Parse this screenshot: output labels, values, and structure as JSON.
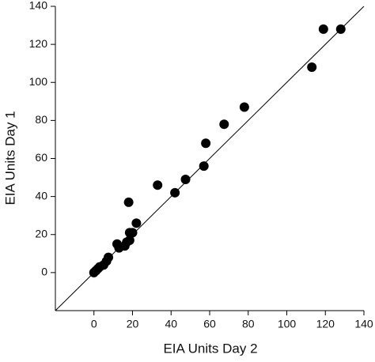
{
  "chart_data": {
    "type": "scatter",
    "x_label": "EIA Units Day 2",
    "y_label": "EIA Units Day 1",
    "x": [
      0,
      1,
      2,
      3,
      5,
      6.5,
      7.5,
      12,
      13,
      16,
      17,
      18.5,
      18.5,
      20,
      22,
      18,
      33,
      42,
      47.5,
      57,
      58,
      67.5,
      78,
      113,
      119,
      128
    ],
    "y": [
      0,
      1,
      2,
      3,
      4,
      6,
      8,
      15,
      13,
      14,
      16,
      17,
      21,
      21,
      26,
      37,
      46,
      42,
      49,
      56,
      68,
      78,
      87,
      108,
      128,
      128
    ],
    "color": "#000000",
    "reference_line": {
      "x": [
        -20,
        140
      ],
      "y": [
        -20,
        140
      ]
    },
    "xlim": [
      -20,
      140
    ],
    "ylim": [
      -20,
      140
    ],
    "xticks": [
      0,
      20,
      40,
      60,
      80,
      100,
      120,
      140
    ],
    "yticks": [
      0,
      20,
      40,
      60,
      80,
      100,
      120,
      140
    ],
    "grid": false
  }
}
